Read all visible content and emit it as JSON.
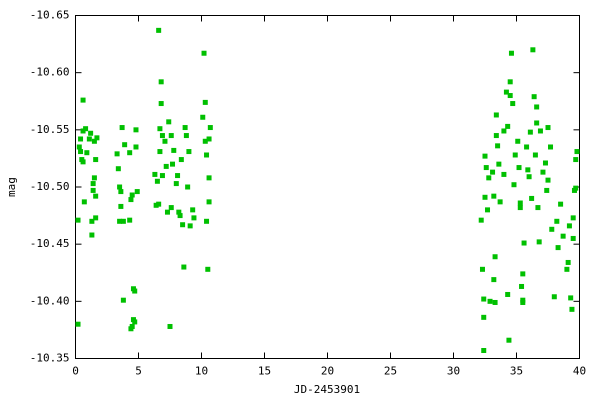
{
  "chart_data": {
    "type": "scatter",
    "xlabel": "JD-2453901",
    "ylabel": "mag",
    "color": "#00c000",
    "xlim": [
      0,
      40
    ],
    "xticks": [
      0,
      5,
      10,
      15,
      20,
      25,
      30,
      35,
      40
    ],
    "ylim": [
      -10.35,
      -10.65
    ],
    "yticks": [
      -10.35,
      {
        "value": -10.4,
        "label": "-10.40"
      },
      -10.45,
      {
        "value": -10.5,
        "label": "-10.50"
      },
      -10.55,
      {
        "value": -10.6,
        "label": "-10.60"
      },
      -10.65
    ],
    "x": [
      0.2,
      0.2,
      0.3,
      0.4,
      0.4,
      0.5,
      0.6,
      0.6,
      0.6,
      0.7,
      0.8,
      0.9,
      1.1,
      1.2,
      1.3,
      1.3,
      1.4,
      1.4,
      1.5,
      1.5,
      1.6,
      1.6,
      1.6,
      1.7,
      3.3,
      3.4,
      3.5,
      3.5,
      3.6,
      3.6,
      3.7,
      3.8,
      3.8,
      3.9,
      4.3,
      4.3,
      4.4,
      4.4,
      4.5,
      4.5,
      4.6,
      4.6,
      4.7,
      4.7,
      4.8,
      4.8,
      4.9,
      6.3,
      6.4,
      6.5,
      6.6,
      6.6,
      6.7,
      6.7,
      6.8,
      6.8,
      6.9,
      6.9,
      7.1,
      7.2,
      7.3,
      7.4,
      7.5,
      7.6,
      7.6,
      7.7,
      7.8,
      8.0,
      8.1,
      8.2,
      8.3,
      8.4,
      8.5,
      8.6,
      8.7,
      8.8,
      8.9,
      9.0,
      9.1,
      9.3,
      9.4,
      10.1,
      10.2,
      10.3,
      10.3,
      10.4,
      10.4,
      10.5,
      10.6,
      10.6,
      10.6,
      10.7,
      32.2,
      32.3,
      32.4,
      32.4,
      32.4,
      32.5,
      32.5,
      32.6,
      32.7,
      32.8,
      32.9,
      33.1,
      33.2,
      33.2,
      33.3,
      33.3,
      33.4,
      33.4,
      33.5,
      33.6,
      33.7,
      34.0,
      34.0,
      34.2,
      34.3,
      34.3,
      34.4,
      34.5,
      34.5,
      34.6,
      34.7,
      34.8,
      34.9,
      35.1,
      35.2,
      35.3,
      35.3,
      35.4,
      35.5,
      35.5,
      35.5,
      35.6,
      35.8,
      35.9,
      36.0,
      36.1,
      36.2,
      36.3,
      36.4,
      36.5,
      36.6,
      36.6,
      36.7,
      36.8,
      36.9,
      37.1,
      37.3,
      37.4,
      37.5,
      37.5,
      37.7,
      37.8,
      38.0,
      38.2,
      38.3,
      38.5,
      38.7,
      39.0,
      39.1,
      39.2,
      39.3,
      39.4,
      39.5,
      39.5,
      39.6,
      39.7,
      39.7,
      39.8
    ],
    "values": [
      -10.471,
      -10.38,
      -10.535,
      -10.542,
      -10.531,
      -10.524,
      -10.576,
      -10.549,
      -10.522,
      -10.487,
      -10.551,
      -10.53,
      -10.542,
      -10.547,
      -10.47,
      -10.458,
      -10.503,
      -10.497,
      -10.54,
      -10.508,
      -10.473,
      -10.492,
      -10.524,
      -10.543,
      -10.529,
      -10.516,
      -10.47,
      -10.5,
      -10.483,
      -10.496,
      -10.552,
      -10.401,
      -10.47,
      -10.537,
      -10.471,
      -10.53,
      -10.489,
      -10.376,
      -10.493,
      -10.378,
      -10.411,
      -10.384,
      -10.409,
      -10.382,
      -10.55,
      -10.535,
      -10.496,
      -10.511,
      -10.484,
      -10.505,
      -10.637,
      -10.485,
      -10.551,
      -10.531,
      -10.592,
      -10.573,
      -10.545,
      -10.51,
      -10.54,
      -10.518,
      -10.478,
      -10.557,
      -10.378,
      -10.545,
      -10.482,
      -10.52,
      -10.532,
      -10.503,
      -10.51,
      -10.478,
      -10.475,
      -10.524,
      -10.467,
      -10.43,
      -10.552,
      -10.545,
      -10.5,
      -10.531,
      -10.466,
      -10.48,
      -10.473,
      -10.561,
      -10.617,
      -10.574,
      -10.54,
      -10.528,
      -10.47,
      -10.428,
      -10.542,
      -10.508,
      -10.487,
      -10.552,
      -10.471,
      -10.428,
      -10.357,
      -10.402,
      -10.386,
      -10.527,
      -10.491,
      -10.517,
      -10.48,
      -10.508,
      -10.4,
      -10.513,
      -10.492,
      -10.419,
      -10.399,
      -10.439,
      -10.545,
      -10.563,
      -10.536,
      -10.52,
      -10.487,
      -10.511,
      -10.549,
      -10.583,
      -10.553,
      -10.406,
      -10.366,
      -10.58,
      -10.592,
      -10.617,
      -10.573,
      -10.502,
      -10.528,
      -10.54,
      -10.517,
      -10.486,
      -10.482,
      -10.413,
      -10.424,
      -10.399,
      -10.401,
      -10.451,
      -10.535,
      -10.515,
      -10.509,
      -10.548,
      -10.49,
      -10.62,
      -10.579,
      -10.528,
      -10.556,
      -10.57,
      -10.482,
      -10.452,
      -10.549,
      -10.513,
      -10.521,
      -10.497,
      -10.506,
      -10.552,
      -10.535,
      -10.463,
      -10.404,
      -10.47,
      -10.447,
      -10.485,
      -10.457,
      -10.428,
      -10.434,
      -10.466,
      -10.403,
      -10.393,
      -10.473,
      -10.455,
      -10.497,
      -10.524,
      -10.499,
      -10.531
    ]
  }
}
